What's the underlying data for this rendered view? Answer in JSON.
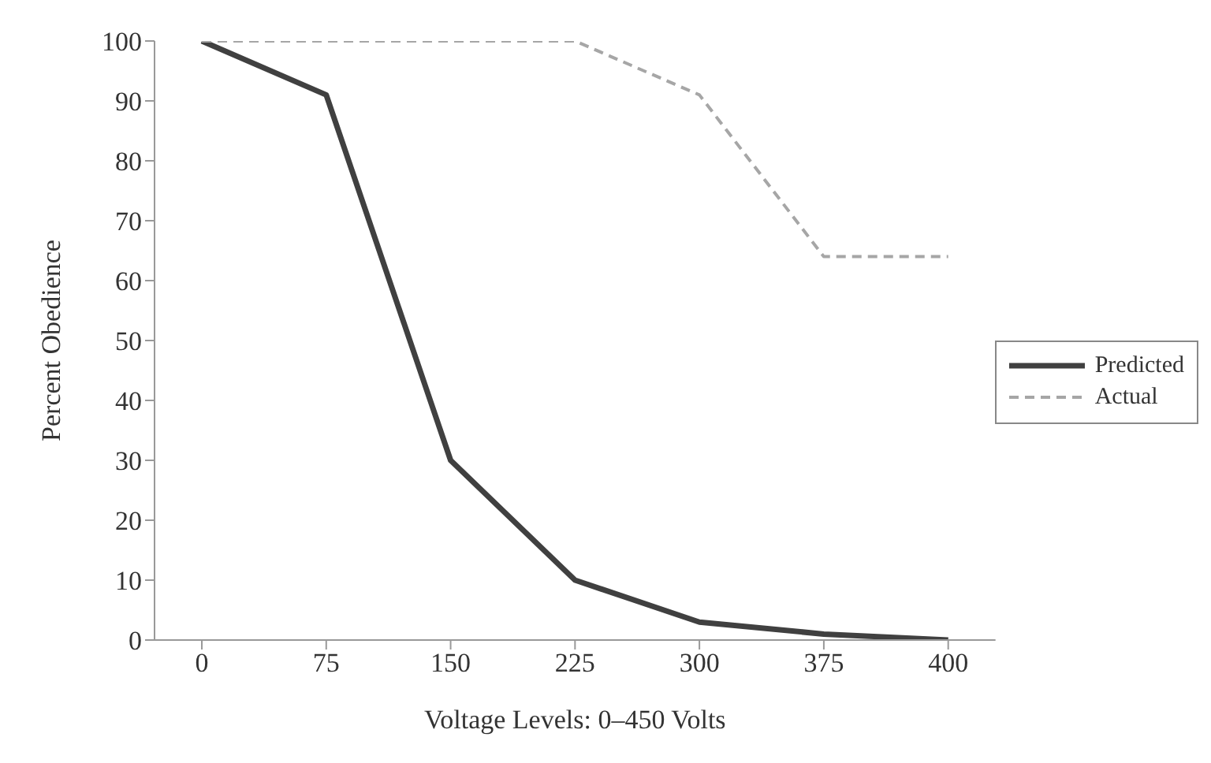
{
  "chart_data": {
    "type": "line",
    "xlabel": "Voltage Levels:  0–450 Volts",
    "ylabel": "Percent Obedience",
    "categories": [
      "0",
      "75",
      "150",
      "225",
      "300",
      "375",
      "400"
    ],
    "series": [
      {
        "name": "Predicted",
        "color": "#404040",
        "line_style": "solid",
        "values": [
          100,
          91,
          30,
          10,
          3,
          1,
          0
        ]
      },
      {
        "name": "Actual",
        "color": "#a6a6a6",
        "line_style": "dashed",
        "values": [
          100,
          100,
          100,
          100,
          91,
          64,
          64
        ]
      }
    ],
    "ylim": [
      0,
      100
    ],
    "yticks": [
      0,
      10,
      20,
      30,
      40,
      50,
      60,
      70,
      80,
      90,
      100
    ],
    "grid": false,
    "legend": "right",
    "marker": "none"
  }
}
